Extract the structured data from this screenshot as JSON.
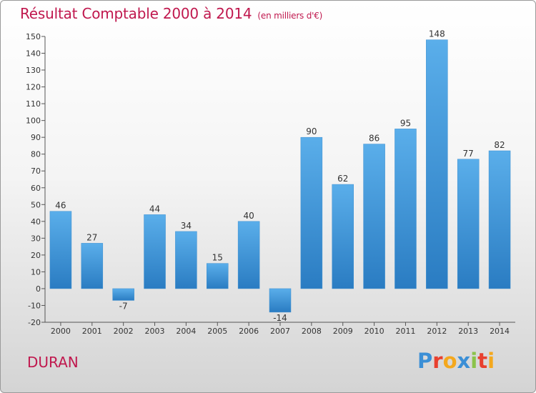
{
  "header": {
    "title": "Résultat Comptable 2000 à 2014",
    "subtitle": "(en milliers d'€)"
  },
  "footer": {
    "commune": "DURAN",
    "brand": "Proxiti",
    "brand_colors": [
      "#3b8fd6",
      "#e8402f",
      "#f4a81d",
      "#3b8fd6",
      "#8bc34a",
      "#e8402f",
      "#f4a81d"
    ]
  },
  "colors": {
    "bar_top": "#5aaeea",
    "bar_bottom": "#2a7cc2",
    "title": "#c0184e"
  },
  "chart_data": {
    "type": "bar",
    "title": "Résultat Comptable 2000 à 2014",
    "subtitle": "(en milliers d'€)",
    "categories": [
      "2000",
      "2001",
      "2002",
      "2003",
      "2004",
      "2005",
      "2006",
      "2007",
      "2008",
      "2009",
      "2010",
      "2011",
      "2012",
      "2013",
      "2014"
    ],
    "values": [
      46,
      27,
      -7,
      44,
      34,
      15,
      40,
      -14,
      90,
      62,
      86,
      95,
      148,
      77,
      82
    ],
    "data_labels": [
      "46",
      "27",
      "-7",
      "44",
      "34",
      "15",
      "40",
      "-14",
      "90",
      "62",
      "86",
      "95",
      "148",
      "77",
      "82"
    ],
    "ylim": [
      -20,
      150
    ],
    "yticks": [
      -20,
      -10,
      0,
      10,
      20,
      30,
      40,
      50,
      60,
      70,
      80,
      90,
      100,
      110,
      120,
      130,
      140,
      150
    ],
    "grid": false,
    "legend": "none"
  }
}
